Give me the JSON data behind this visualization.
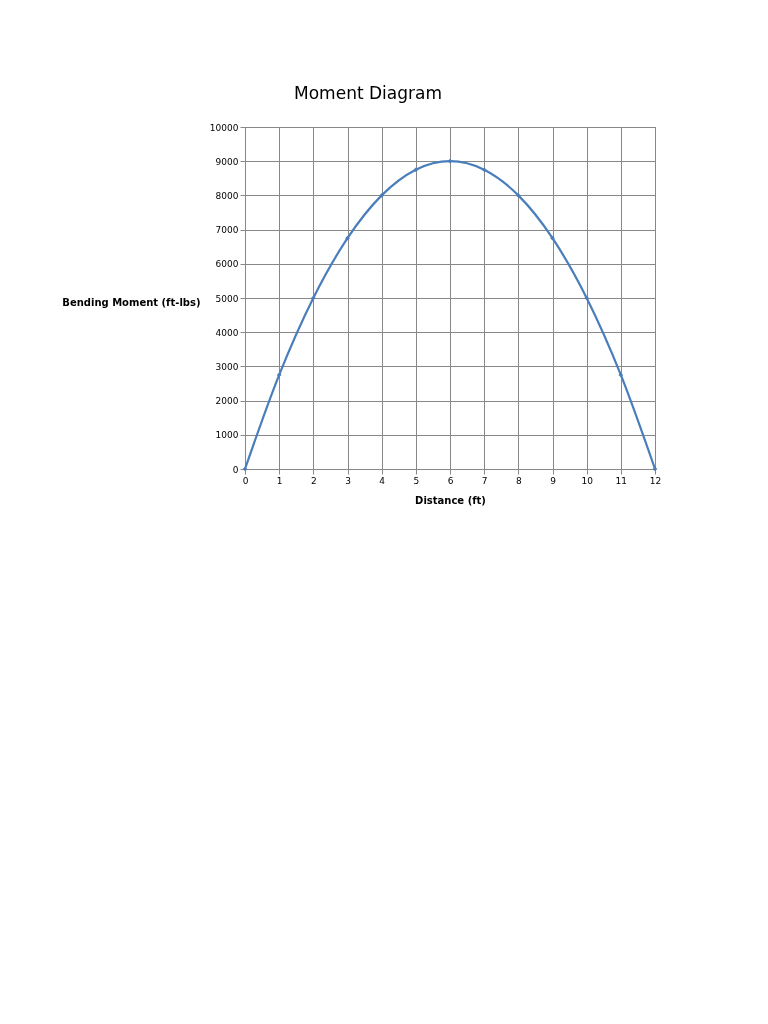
{
  "chart_data": {
    "type": "line",
    "title": "Moment Diagram",
    "xlabel": "Distance (ft)",
    "ylabel": "Bending Moment (ft-lbs)",
    "x": [
      0,
      1,
      2,
      3,
      4,
      5,
      6,
      7,
      8,
      9,
      10,
      11,
      12
    ],
    "series": [
      {
        "color": "#4a7ebb",
        "values": [
          0,
          2750,
          5000,
          6750,
          8000,
          8750,
          9000,
          8750,
          8000,
          6750,
          5000,
          2750,
          0
        ]
      }
    ],
    "xlim": [
      0,
      12
    ],
    "xticks": [
      0,
      1,
      2,
      3,
      4,
      5,
      6,
      7,
      8,
      9,
      10,
      11,
      12
    ],
    "ylim": [
      0,
      10000
    ],
    "yticks": [
      0,
      1000,
      2000,
      3000,
      4000,
      5000,
      6000,
      7000,
      8000,
      9000,
      10000
    ],
    "grid": true,
    "marker": "diamond",
    "line_style": "solid"
  }
}
